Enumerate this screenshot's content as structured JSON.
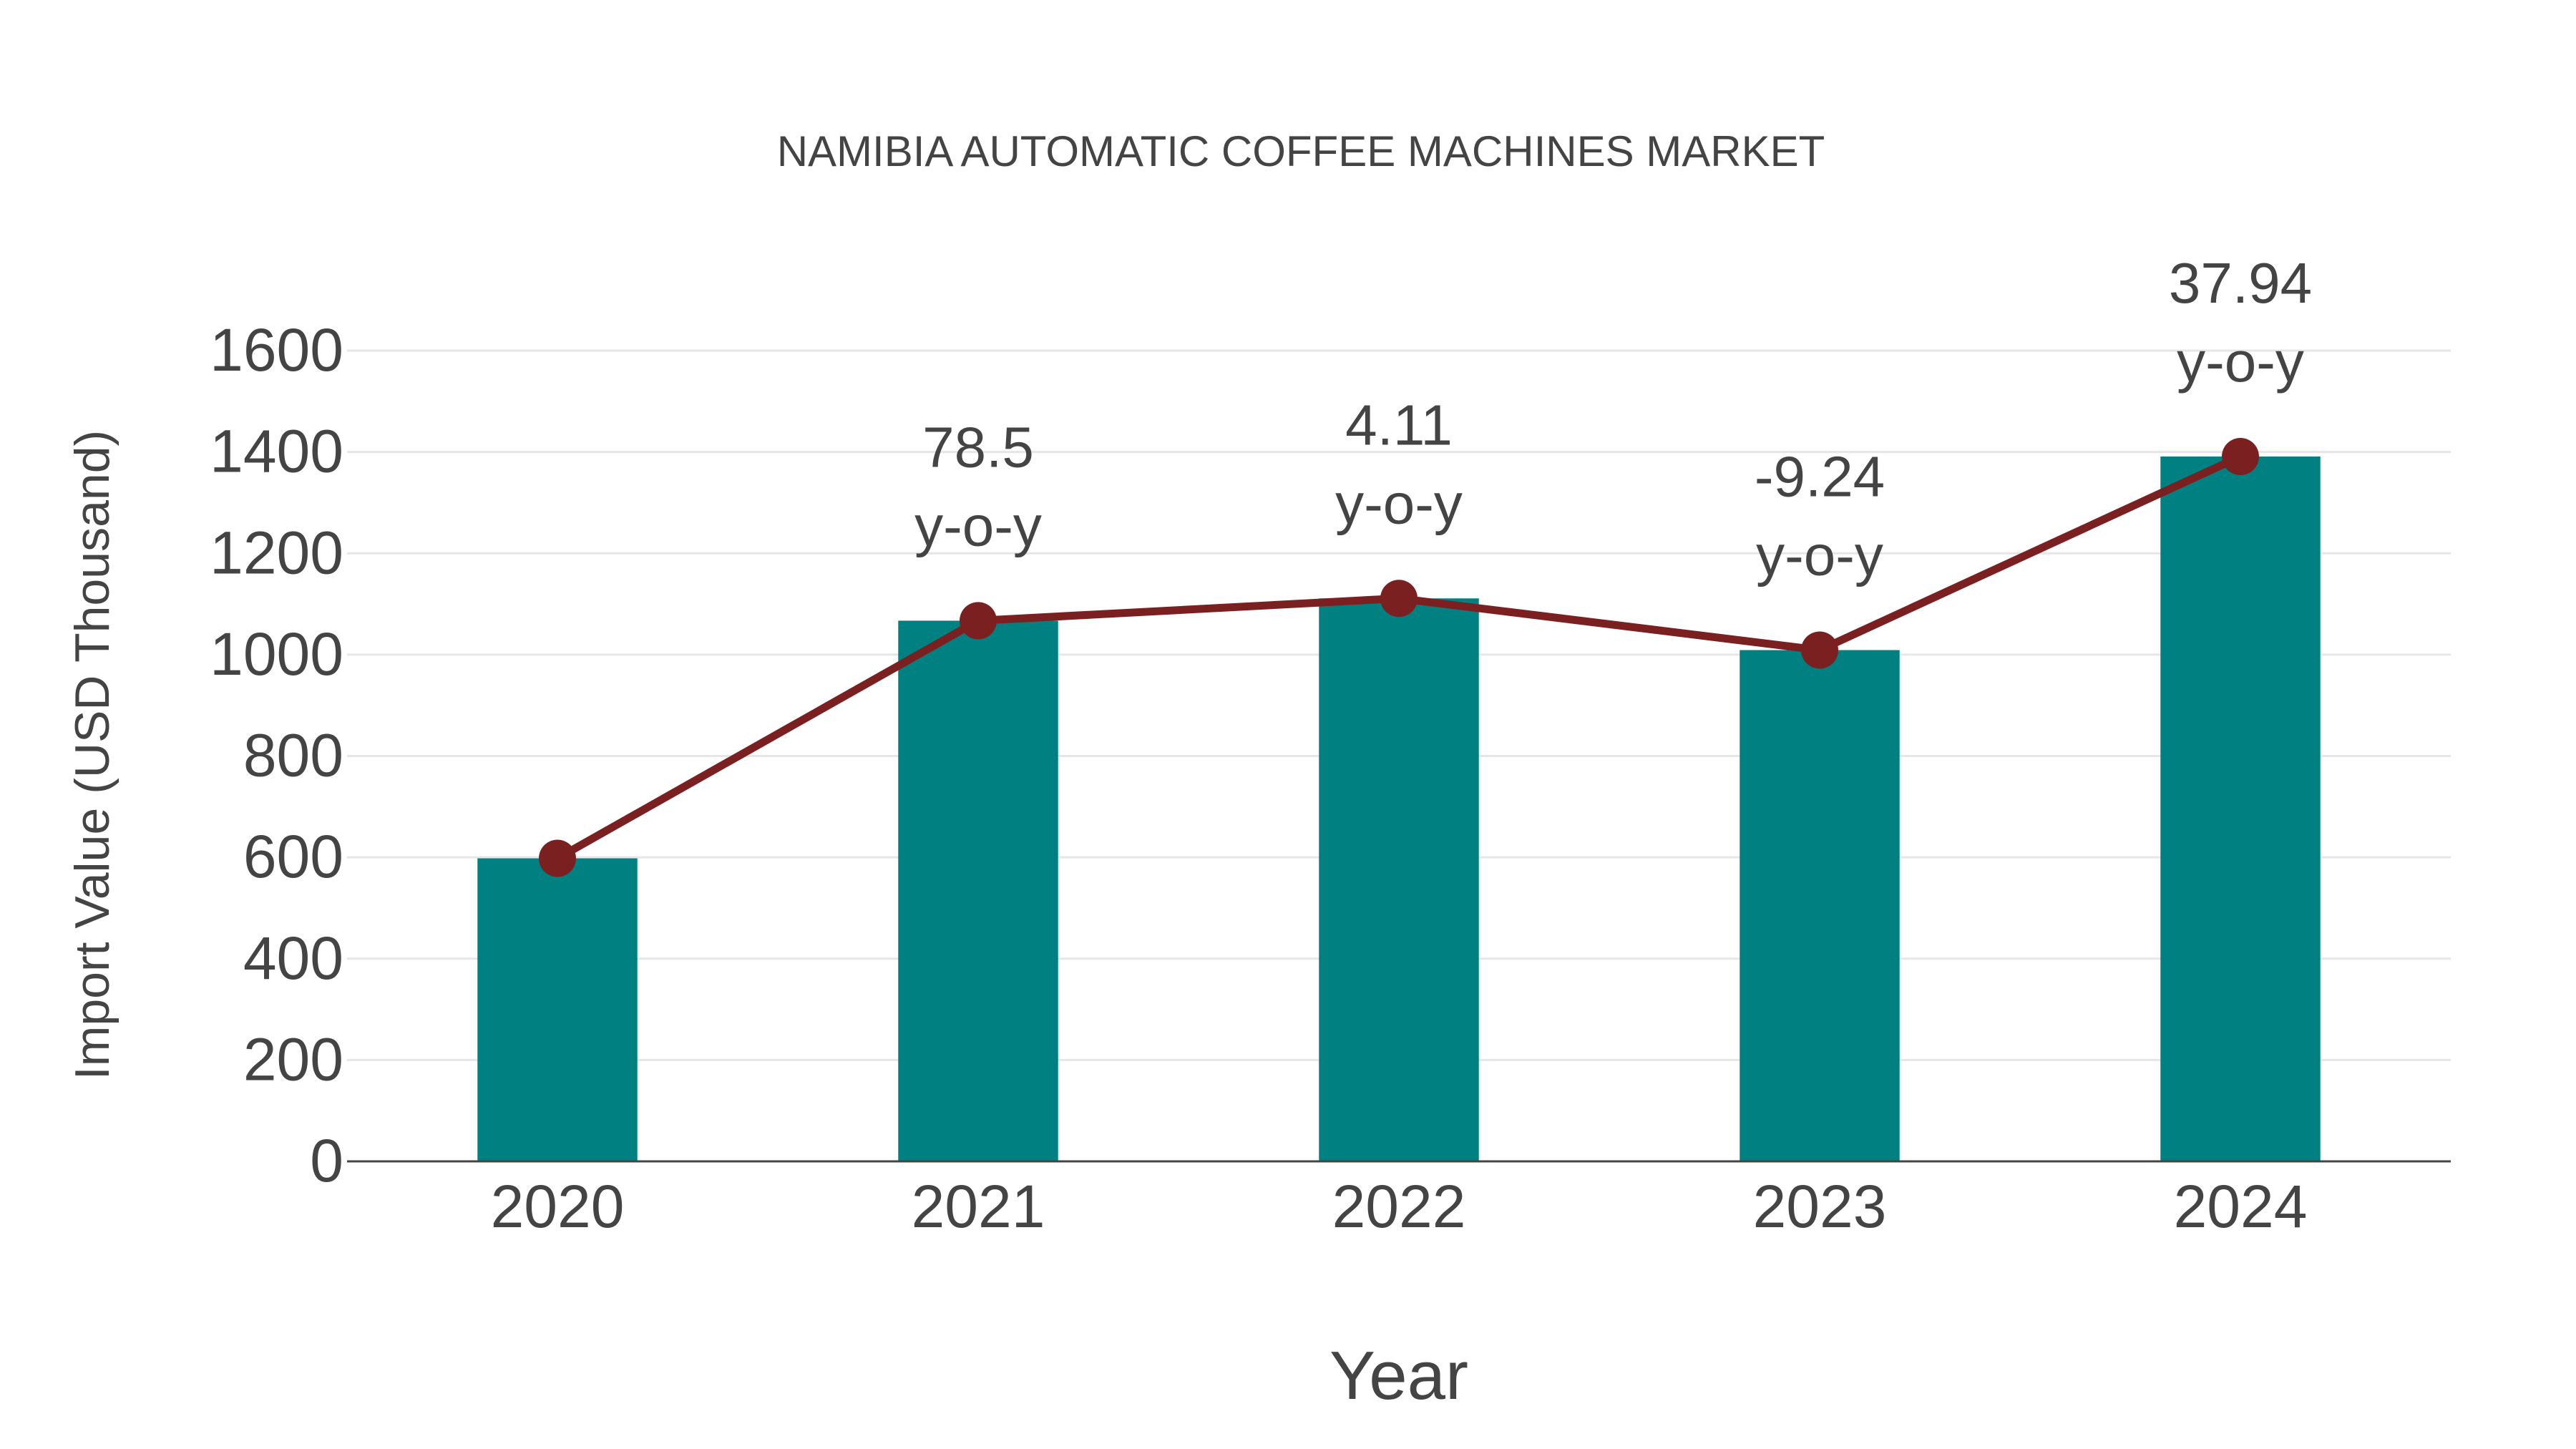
{
  "chart_data": {
    "type": "bar+line",
    "title": "NAMIBIA AUTOMATIC COFFEE MACHINES MARKET",
    "xlabel": "Year",
    "ylabel": "Import Value (USD Thousand)",
    "categories": [
      "2020",
      "2021",
      "2022",
      "2023",
      "2024"
    ],
    "series": [
      {
        "name": "Import Value",
        "type": "bar",
        "color": "#008080",
        "values": [
          598,
          1067,
          1111,
          1009,
          1391
        ]
      },
      {
        "name": "Trend",
        "type": "line",
        "color": "#7B2020",
        "values": [
          598,
          1067,
          1111,
          1009,
          1391
        ]
      }
    ],
    "annotations": [
      {
        "category": "2021",
        "value": "78.5",
        "suffix": "y-o-y"
      },
      {
        "category": "2022",
        "value": "4.11",
        "suffix": "y-o-y"
      },
      {
        "category": "2023",
        "value": "-9.24",
        "suffix": "y-o-y"
      },
      {
        "category": "2024",
        "value": "37.94",
        "suffix": "y-o-y"
      }
    ],
    "yticks": [
      0,
      200,
      400,
      600,
      800,
      1000,
      1200,
      1400,
      1600
    ],
    "ylim": [
      0,
      1600
    ],
    "grid": true,
    "legend": "none"
  }
}
